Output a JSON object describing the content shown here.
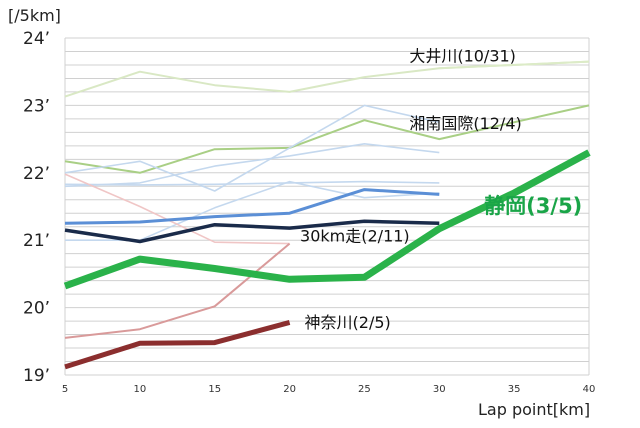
{
  "chart_data": {
    "type": "line",
    "title": "",
    "ylabel": "[/5km]",
    "xlabel": "Lap point[km]",
    "ylim": [
      19,
      24
    ],
    "xlim": [
      5,
      40
    ],
    "grid": true,
    "y_ticks": [
      {
        "value": 24,
        "label": "24’"
      },
      {
        "value": 23,
        "label": "23’"
      },
      {
        "value": 22,
        "label": "22’"
      },
      {
        "value": 21,
        "label": "21’"
      },
      {
        "value": 20,
        "label": "20’"
      },
      {
        "value": 19,
        "label": "19’"
      }
    ],
    "x_ticks": [
      {
        "value": 5,
        "label": "5"
      },
      {
        "value": 10,
        "label": "10"
      },
      {
        "value": 15,
        "label": "15"
      },
      {
        "value": 20,
        "label": "20"
      },
      {
        "value": 25,
        "label": "25"
      },
      {
        "value": 30,
        "label": "30"
      },
      {
        "value": 35,
        "label": "35"
      },
      {
        "value": 40,
        "label": "40"
      }
    ],
    "series": [
      {
        "id": "bg1",
        "color": "#d9e8c4",
        "width": 2,
        "x": [
          5,
          10,
          15,
          20,
          25,
          30,
          40
        ],
        "y": [
          23.13,
          23.5,
          23.3,
          23.2,
          23.42,
          23.55,
          23.65
        ]
      },
      {
        "name": "大井川(10/31)",
        "color": "#dcebc7",
        "width": 2,
        "x": [
          30,
          40
        ],
        "y": [
          23.55,
          23.65
        ]
      },
      {
        "name": "湘南国際(12/4)",
        "color": "#a9cf85",
        "width": 2,
        "x": [
          5,
          10,
          15,
          20,
          25,
          30,
          40
        ],
        "y": [
          22.17,
          22.0,
          22.35,
          22.37,
          22.78,
          22.5,
          23.0
        ]
      },
      {
        "id": "bg2",
        "color": "#c4d8ee",
        "width": 1.6,
        "x": [
          5,
          10,
          15,
          20,
          25,
          30
        ],
        "y": [
          22.0,
          22.17,
          21.73,
          22.37,
          23.0,
          22.75
        ]
      },
      {
        "id": "bg3",
        "color": "#c4d8ee",
        "width": 1.6,
        "x": [
          5,
          10,
          15,
          20,
          25,
          30
        ],
        "y": [
          21.8,
          21.85,
          22.1,
          22.25,
          22.43,
          22.3
        ]
      },
      {
        "id": "bg4",
        "color": "#c4d8ee",
        "width": 1.6,
        "x": [
          5,
          10,
          15,
          20,
          25,
          30
        ],
        "y": [
          21.83,
          21.82,
          21.83,
          21.85,
          21.87,
          21.85
        ]
      },
      {
        "id": "bg5",
        "color": "#c4d8ee",
        "width": 1.6,
        "x": [
          5,
          10,
          15,
          20,
          25,
          30
        ],
        "y": [
          21.0,
          21.0,
          21.48,
          21.87,
          21.63,
          21.7
        ]
      },
      {
        "id": "bg6",
        "color": "#f0c6c6",
        "width": 1.6,
        "x": [
          5,
          10,
          15,
          20
        ],
        "y": [
          21.98,
          21.5,
          20.97,
          20.95
        ]
      },
      {
        "id": "bg7",
        "color": "#5b8fd6",
        "width": 3,
        "x": [
          5,
          10,
          15,
          20,
          25,
          30
        ],
        "y": [
          21.25,
          21.27,
          21.35,
          21.4,
          21.75,
          21.68
        ]
      },
      {
        "name": "30km走(2/11)",
        "color": "#1a2b4a",
        "width": 3.5,
        "x": [
          5,
          10,
          15,
          20,
          25,
          30
        ],
        "y": [
          21.15,
          20.98,
          21.23,
          21.18,
          21.28,
          21.25
        ]
      },
      {
        "id": "bg8",
        "color": "#d99a9a",
        "width": 2,
        "x": [
          5,
          10,
          15,
          20
        ],
        "y": [
          19.55,
          19.68,
          20.02,
          20.95
        ]
      },
      {
        "name": "神奈川(2/5)",
        "color": "#8b2e2e",
        "width": 5,
        "x": [
          5,
          10,
          15,
          20
        ],
        "y": [
          19.12,
          19.47,
          19.48,
          19.78
        ]
      },
      {
        "name": "静岡(3/5)",
        "color": "#2ab24a",
        "width": 7,
        "x": [
          5,
          10,
          15,
          20,
          25,
          30,
          35,
          40
        ],
        "y": [
          20.32,
          20.72,
          20.58,
          20.42,
          20.45,
          21.17,
          21.7,
          22.3
        ]
      }
    ],
    "annotations": [
      {
        "series": "大井川(10/31)",
        "text": "大井川(10/31)",
        "x": 28,
        "y": 23.65,
        "style": "normal"
      },
      {
        "series": "湘南国際(12/4)",
        "text": "湘南国際(12/4)",
        "x": 28,
        "y": 22.65,
        "style": "normal"
      },
      {
        "series": "30km走(2/11)",
        "text": "30km走(2/11)",
        "x": 20.7,
        "y": 20.98,
        "style": "normal"
      },
      {
        "series": "神奈川(2/5)",
        "text": "神奈川(2/5)",
        "x": 21,
        "y": 19.7,
        "style": "normal"
      },
      {
        "series": "静岡(3/5)",
        "text": "静岡(3/5)",
        "x": 33,
        "y": 21.4,
        "style": "highlight"
      }
    ]
  }
}
